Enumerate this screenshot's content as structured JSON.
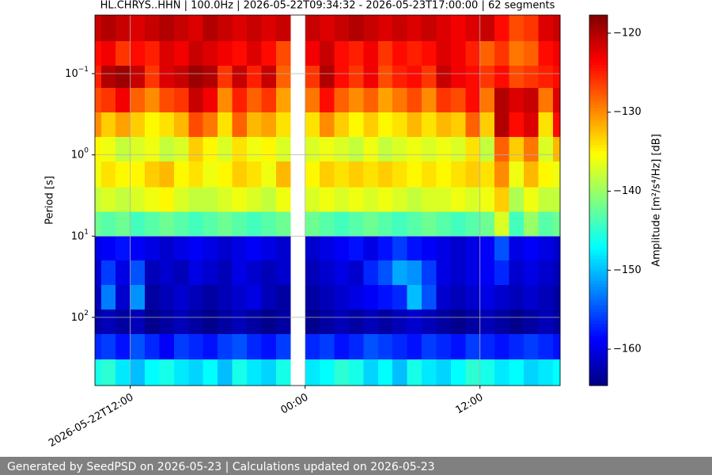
{
  "chart_data": {
    "type": "spectrogram",
    "title": "HL.CHRYS..HHN | 100.0Hz | 2026-05-22T09:34:32 - 2026-05-23T17:00:00 | 62 segments",
    "ylabel": "Period [s]",
    "colorbar_label": "Amplitude [m²/s⁴/Hz] [dB]",
    "colormap": "jet",
    "yscale": "log",
    "y_inverted": true,
    "grid": true,
    "xlim": [
      "2026-05-22T09:34:32",
      "2026-05-23T17:30"
    ],
    "xticks": [
      {
        "value": "2026-05-22T12:00",
        "label": "2026-05-22T12:00"
      },
      {
        "value": "2026-05-23T00:00",
        "label": "00:00"
      },
      {
        "value": "2026-05-23T12:00",
        "label": "12:00"
      }
    ],
    "ylim": [
      0.019,
      690
    ],
    "yticks": [
      {
        "value": 0.1,
        "label": "10",
        "sup": "−1"
      },
      {
        "value": 1,
        "label": "10",
        "sup": "0"
      },
      {
        "value": 10,
        "label": "10",
        "sup": "1"
      },
      {
        "value": 100,
        "label": "10",
        "sup": "2"
      }
    ],
    "clim": [
      -164.6,
      -117.7
    ],
    "cticks": [
      {
        "value": -120,
        "label": "−120"
      },
      {
        "value": -130,
        "label": "−130"
      },
      {
        "value": -140,
        "label": "−140"
      },
      {
        "value": -150,
        "label": "−150"
      },
      {
        "value": -160,
        "label": "−160"
      }
    ],
    "x_bins": [
      "2026-05-22T09:34:32",
      "2026-05-22T10:00",
      "2026-05-22T11:00",
      "2026-05-22T12:00",
      "2026-05-22T13:00",
      "2026-05-22T14:00",
      "2026-05-22T15:00",
      "2026-05-22T16:00",
      "2026-05-22T17:00",
      "2026-05-22T18:00",
      "2026-05-22T19:00",
      "2026-05-22T20:00",
      "2026-05-22T21:00",
      "2026-05-22T22:00",
      "2026-05-22T23:00",
      "2026-05-23T00:00",
      "2026-05-23T01:00",
      "2026-05-23T02:00",
      "2026-05-23T03:00",
      "2026-05-23T04:00",
      "2026-05-23T05:00",
      "2026-05-23T06:00",
      "2026-05-23T07:00",
      "2026-05-23T08:00",
      "2026-05-23T09:00",
      "2026-05-23T10:00",
      "2026-05-23T11:00",
      "2026-05-23T12:00",
      "2026-05-23T13:00",
      "2026-05-23T14:00",
      "2026-05-23T15:00",
      "2026-05-23T16:00",
      "2026-05-23T17:00",
      "2026-05-23T17:30"
    ],
    "period_bins": [
      0.019,
      0.04,
      0.08,
      0.15,
      0.3,
      0.6,
      1.2,
      2.5,
      5,
      10,
      20,
      40,
      80,
      160,
      330,
      690
    ],
    "z": [
      [
        -121,
        -120,
        -121,
        -122,
        -121,
        -120,
        -121,
        -122,
        -120,
        -121,
        -122,
        -121,
        -122,
        -121,
        null,
        -121,
        -122,
        -121,
        -120,
        -121,
        -122,
        -121,
        -122,
        -121,
        -122,
        -123,
        -122,
        -121,
        -124,
        -127,
        -126,
        -122,
        -121
      ],
      [
        -124,
        -123,
        -126,
        -124,
        -125,
        -122,
        -123,
        -121,
        -122,
        -123,
        -124,
        -122,
        -124,
        -127,
        null,
        -123,
        -121,
        -124,
        -125,
        -123,
        -126,
        -124,
        -125,
        -124,
        -122,
        -123,
        -125,
        -128,
        -126,
        -129,
        -128,
        -124,
        -123
      ],
      [
        -125,
        -120,
        -119,
        -121,
        -126,
        -122,
        -121,
        -119,
        -120,
        -126,
        -121,
        -125,
        -121,
        -128,
        null,
        -126,
        -120,
        -124,
        -126,
        -123,
        -127,
        -125,
        -124,
        -126,
        -121,
        -123,
        -124,
        -126,
        -124,
        -127,
        -126,
        -125,
        -124
      ],
      [
        -127,
        -126,
        -123,
        -128,
        -130,
        -127,
        -126,
        -121,
        -123,
        -130,
        -125,
        -128,
        -126,
        -131,
        null,
        -129,
        -124,
        -128,
        -130,
        -128,
        -131,
        -129,
        -127,
        -130,
        -126,
        -127,
        -124,
        -129,
        -120,
        -122,
        -121,
        -129,
        -122
      ],
      [
        -130,
        -133,
        -131,
        -133,
        -135,
        -134,
        -132,
        -127,
        -129,
        -134,
        -128,
        -132,
        -131,
        -134,
        null,
        -134,
        -130,
        -133,
        -135,
        -133,
        -135,
        -134,
        -132,
        -134,
        -132,
        -133,
        -128,
        -133,
        -120,
        -124,
        -122,
        -134,
        -124
      ],
      [
        -135,
        -136,
        -138,
        -137,
        -136,
        -138,
        -137,
        -133,
        -135,
        -137,
        -134,
        -136,
        -135,
        -137,
        null,
        -137,
        -136,
        -137,
        -138,
        -136,
        -138,
        -137,
        -136,
        -137,
        -136,
        -137,
        -134,
        -138,
        -128,
        -133,
        -129,
        -137,
        -132
      ],
      [
        -136,
        -134,
        -135,
        -135,
        -133,
        -132,
        -135,
        -134,
        -136,
        -135,
        -133,
        -134,
        -136,
        -132,
        null,
        -135,
        -133,
        -134,
        -133,
        -134,
        -133,
        -134,
        -135,
        -134,
        -135,
        -134,
        -133,
        -134,
        -130,
        -136,
        -132,
        -135,
        -136
      ],
      [
        -138,
        -137,
        -138,
        -137,
        -136,
        -135,
        -137,
        -138,
        -138,
        -137,
        -136,
        -137,
        -138,
        -136,
        null,
        -137,
        -136,
        -137,
        -136,
        -137,
        -136,
        -137,
        -138,
        -137,
        -137,
        -136,
        -137,
        -136,
        -133,
        -139,
        -136,
        -138,
        -138
      ],
      [
        -142,
        -143,
        -142,
        -144,
        -143,
        -142,
        -143,
        -144,
        -143,
        -142,
        -143,
        -144,
        -143,
        -142,
        null,
        -142,
        -143,
        -144,
        -143,
        -142,
        -143,
        -144,
        -143,
        -142,
        -143,
        -144,
        -143,
        -142,
        -137,
        -144,
        -140,
        -143,
        -142
      ],
      [
        -160,
        -159,
        -158,
        -159,
        -160,
        -161,
        -160,
        -159,
        -160,
        -161,
        -160,
        -159,
        -160,
        -161,
        null,
        -161,
        -160,
        -159,
        -158,
        -160,
        -158,
        -156,
        -158,
        -159,
        -160,
        -161,
        -160,
        -159,
        -155,
        -160,
        -159,
        -160,
        -161
      ],
      [
        -161,
        -156,
        -160,
        -155,
        -162,
        -161,
        -162,
        -160,
        -161,
        -162,
        -160,
        -161,
        -162,
        -161,
        null,
        -162,
        -161,
        -160,
        -161,
        -157,
        -155,
        -151,
        -152,
        -156,
        -160,
        -161,
        -160,
        -159,
        -157,
        -161,
        -160,
        -161,
        -162
      ],
      [
        -162,
        -153,
        -161,
        -152,
        -163,
        -162,
        -161,
        -162,
        -163,
        -162,
        -161,
        -160,
        -162,
        -163,
        null,
        -163,
        -162,
        -161,
        -160,
        -159,
        -158,
        -157,
        -150,
        -155,
        -161,
        -162,
        -161,
        -160,
        -161,
        -162,
        -161,
        -162,
        -163
      ],
      [
        -163,
        -162,
        -163,
        -162,
        -164,
        -163,
        -162,
        -163,
        -164,
        -163,
        -162,
        -163,
        -164,
        -163,
        null,
        -164,
        -163,
        -162,
        -163,
        -162,
        -163,
        -162,
        -161,
        -162,
        -163,
        -164,
        -163,
        -162,
        -163,
        -164,
        -163,
        -162,
        -163
      ],
      [
        -157,
        -156,
        -158,
        -155,
        -157,
        -159,
        -156,
        -157,
        -158,
        -156,
        -155,
        -157,
        -158,
        -156,
        null,
        -157,
        -156,
        -158,
        -157,
        -155,
        -156,
        -157,
        -158,
        -156,
        -157,
        -158,
        -156,
        -157,
        -158,
        -157,
        -156,
        -157,
        -158
      ],
      [
        -146,
        -145,
        -148,
        -150,
        -147,
        -146,
        -148,
        -149,
        -147,
        -150,
        -146,
        -148,
        -149,
        -146,
        null,
        -148,
        -147,
        -145,
        -146,
        -149,
        -147,
        -150,
        -146,
        -148,
        -149,
        -147,
        -145,
        -146,
        -148,
        -147,
        -149,
        -148,
        -147
      ]
    ]
  },
  "footer": "Generated by SeedPSD on 2026-05-23 | Calculations updated on 2026-05-23"
}
